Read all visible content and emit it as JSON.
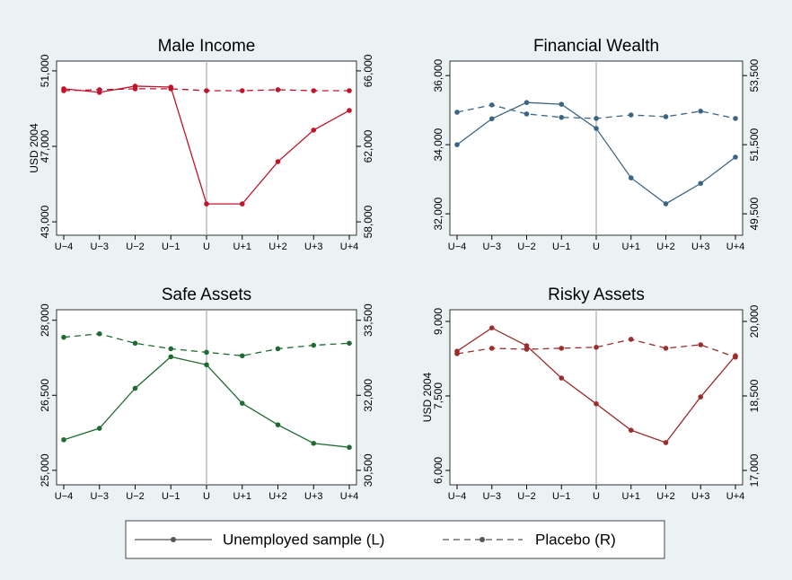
{
  "chart_data": [
    {
      "type": "line",
      "title": "Male Income",
      "ylabel": "USD 2004",
      "categories": [
        "U−4",
        "U−3",
        "U−2",
        "U−1",
        "U",
        "U+1",
        "U+2",
        "U+3",
        "U+4"
      ],
      "ylim": [
        42290,
        51520
      ],
      "yticks": [
        {
          "value": 43000,
          "label": "43,000"
        },
        {
          "value": 47000,
          "label": "47,000"
        },
        {
          "value": 51000,
          "label": "51,000"
        }
      ],
      "y2lim": [
        57290,
        66520
      ],
      "y2ticks": [
        {
          "value": 58000,
          "label": "58,000"
        },
        {
          "value": 62000,
          "label": "62,000"
        },
        {
          "value": 66000,
          "label": "66,000"
        }
      ],
      "series": [
        {
          "color": "#c0142c",
          "values": [
            50050,
            49860,
            50190,
            50140,
            43950,
            43950,
            46190,
            47860,
            48900
          ]
        },
        {
          "color": "#c0142c",
          "axis": "y2",
          "dashed": true,
          "values": [
            64950,
            65000,
            65050,
            65050,
            64950,
            64950,
            65000,
            64950,
            64950
          ]
        }
      ]
    },
    {
      "type": "line",
      "title": "Financial Wealth",
      "categories": [
        "U−4",
        "U−3",
        "U−2",
        "U−1",
        "U",
        "U+1",
        "U+2",
        "U+3",
        "U+4"
      ],
      "ylim": [
        31380,
        36420
      ],
      "yticks": [
        {
          "value": 32000,
          "label": "32,000"
        },
        {
          "value": 34000,
          "label": "34,000"
        },
        {
          "value": 36000,
          "label": "36,000"
        }
      ],
      "y2lim": [
        48880,
        53920
      ],
      "y2ticks": [
        {
          "value": 49500,
          "label": "49,500"
        },
        {
          "value": 51500,
          "label": "51,500"
        },
        {
          "value": 53500,
          "label": "53,500"
        }
      ],
      "series": [
        {
          "color": "#3b6584",
          "values": [
            34000,
            34750,
            35220,
            35170,
            34470,
            33040,
            32290,
            32880,
            33640
          ]
        },
        {
          "color": "#3b6584",
          "axis": "y2",
          "dashed": true,
          "values": [
            52440,
            52650,
            52390,
            52290,
            52260,
            52360,
            52310,
            52470,
            52260
          ]
        }
      ]
    },
    {
      "type": "line",
      "title": "Safe Assets",
      "categories": [
        "U−4",
        "U−3",
        "U−2",
        "U−1",
        "U",
        "U+1",
        "U+2",
        "U+3",
        "U+4"
      ],
      "ylim": [
        24710,
        28210
      ],
      "yticks": [
        {
          "value": 25000,
          "label": "25,000"
        },
        {
          "value": 26500,
          "label": "26,500"
        },
        {
          "value": 28000,
          "label": "28,000"
        }
      ],
      "y2lim": [
        30210,
        33710
      ],
      "y2ticks": [
        {
          "value": 30500,
          "label": "30,500"
        },
        {
          "value": 32000,
          "label": "32,000"
        },
        {
          "value": 33500,
          "label": "33,500"
        }
      ],
      "series": [
        {
          "color": "#1f6b33",
          "values": [
            25610,
            25840,
            26640,
            27270,
            27110,
            26340,
            25910,
            25540,
            25460
          ]
        },
        {
          "color": "#1f6b33",
          "axis": "y2",
          "dashed": true,
          "values": [
            33160,
            33230,
            33040,
            32930,
            32860,
            32790,
            32930,
            33000,
            33040
          ]
        }
      ]
    },
    {
      "type": "line",
      "title": "Risky Assets",
      "ylabel": "USD 2004",
      "categories": [
        "U−4",
        "U−3",
        "U−2",
        "U−1",
        "U",
        "U+1",
        "U+2",
        "U+3",
        "U+4"
      ],
      "ylim": [
        5710,
        9235
      ],
      "yticks": [
        {
          "value": 6000,
          "label": "6,000"
        },
        {
          "value": 7500,
          "label": "7,500"
        },
        {
          "value": 9000,
          "label": "9,000"
        }
      ],
      "y2lim": [
        16710,
        20235
      ],
      "y2ticks": [
        {
          "value": 17000,
          "label": "17,000"
        },
        {
          "value": 18500,
          "label": "18,500"
        },
        {
          "value": 20000,
          "label": "20,000"
        }
      ],
      "series": [
        {
          "color": "#9b2d2d",
          "values": [
            8400,
            8870,
            8510,
            7860,
            7340,
            6810,
            6560,
            7480,
            8310
          ]
        },
        {
          "color": "#9b2d2d",
          "axis": "y2",
          "dashed": true,
          "values": [
            19350,
            19460,
            19440,
            19460,
            19480,
            19640,
            19460,
            19530,
            19280
          ]
        }
      ]
    }
  ],
  "legend": {
    "entries": [
      "Unemployed sample (L)",
      "Placebo (R)"
    ],
    "color": "#555555"
  }
}
